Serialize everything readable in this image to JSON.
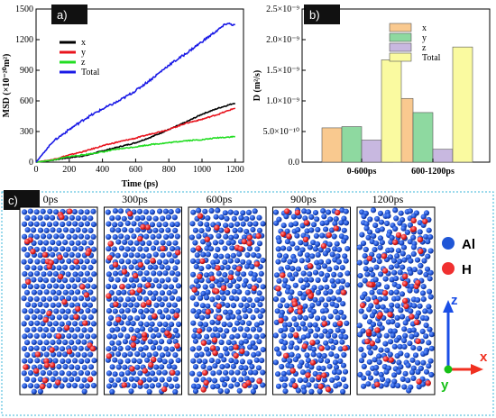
{
  "chart_data": [
    {
      "type": "line",
      "panel": "a)",
      "xlabel": "Time (ps)",
      "ylabel": "MSD (×10⁻²⁰m²)",
      "xlim": [
        0,
        1250
      ],
      "ylim": [
        0,
        1500
      ],
      "xticks": [
        "0",
        "200",
        "400",
        "600",
        "800",
        "1000",
        "1200"
      ],
      "yticks": [
        "0",
        "300",
        "600",
        "900",
        "1200",
        "1500"
      ],
      "legend_position": "top-left",
      "series": [
        {
          "name": "x",
          "color": "#000000",
          "x": [
            0,
            100,
            200,
            300,
            400,
            500,
            600,
            700,
            800,
            900,
            1000,
            1100,
            1200
          ],
          "y": [
            0,
            20,
            45,
            65,
            110,
            150,
            190,
            250,
            320,
            390,
            470,
            530,
            580
          ]
        },
        {
          "name": "y",
          "color": "#e8141e",
          "x": [
            0,
            100,
            200,
            300,
            400,
            500,
            600,
            700,
            800,
            900,
            1000,
            1100,
            1200
          ],
          "y": [
            0,
            25,
            70,
            110,
            160,
            200,
            235,
            280,
            320,
            380,
            420,
            470,
            530
          ]
        },
        {
          "name": "z",
          "color": "#22dd22",
          "x": [
            0,
            100,
            200,
            300,
            400,
            500,
            600,
            700,
            800,
            900,
            1000,
            1100,
            1200
          ],
          "y": [
            0,
            20,
            55,
            75,
            100,
            130,
            150,
            175,
            190,
            210,
            220,
            240,
            250
          ]
        },
        {
          "name": "Total",
          "color": "#1a1ae6",
          "x": [
            0,
            100,
            200,
            300,
            400,
            500,
            600,
            700,
            800,
            900,
            1000,
            1100,
            1150,
            1200
          ],
          "y": [
            0,
            200,
            320,
            430,
            520,
            600,
            700,
            820,
            950,
            1060,
            1180,
            1300,
            1360,
            1340
          ]
        }
      ]
    },
    {
      "type": "bar",
      "panel": "b)",
      "ylabel": "D (m²/s)",
      "categories": [
        "0-600ps",
        "600-1200ps"
      ],
      "ylim": [
        0,
        2.5e-09
      ],
      "yticks": [
        "0.0",
        "5.0×10⁻¹⁰",
        "1.0×10⁻⁹",
        "1.5×10⁻⁹",
        "2.0×10⁻⁹",
        "2.5×10⁻⁹"
      ],
      "legend_position": "top-left",
      "series": [
        {
          "name": "x",
          "color": "#f9c98f",
          "values": [
            5.6e-10,
            1.04e-09
          ]
        },
        {
          "name": "y",
          "color": "#8ed9a0",
          "values": [
            5.8e-10,
            8.1e-10
          ]
        },
        {
          "name": "z",
          "color": "#c8b8e0",
          "values": [
            3.6e-10,
            2.1e-10
          ]
        },
        {
          "name": "Total",
          "color": "#fafaa0",
          "values": [
            1.67e-09,
            1.88e-09
          ]
        }
      ]
    }
  ],
  "panel_c": {
    "tag": "c)",
    "snapshots": [
      "0ps",
      "300ps",
      "600ps",
      "900ps",
      "1200ps"
    ],
    "legend": [
      {
        "label": "Al",
        "color": "#1f56d6"
      },
      {
        "label": "H",
        "color": "#f03030"
      }
    ],
    "axes": {
      "z": "z",
      "x": "x",
      "y": "y"
    },
    "axis_colors": {
      "z": "#1a4ee6",
      "x": "#f03020",
      "y": "#16c016"
    }
  }
}
